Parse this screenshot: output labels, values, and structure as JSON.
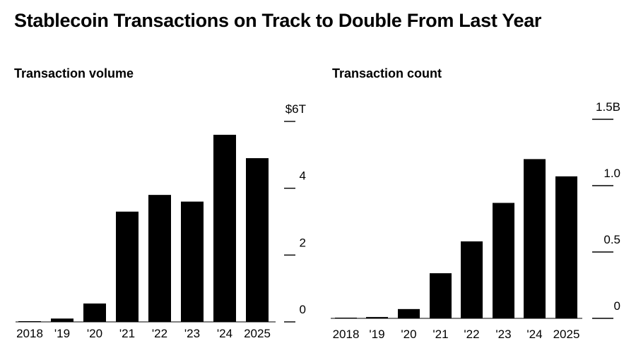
{
  "title": "Stablecoin Transactions on Track to Double From Last Year",
  "chart_data": [
    {
      "type": "bar",
      "title": "Transaction volume",
      "categories": [
        "2018",
        "'19",
        "'20",
        "'21",
        "'22",
        "'23",
        "'24",
        "2025"
      ],
      "values": [
        0.02,
        0.1,
        0.55,
        3.3,
        3.8,
        3.6,
        5.6,
        4.9
      ],
      "ylim": [
        0,
        6
      ],
      "yticks": [
        0,
        2,
        4,
        6
      ],
      "ytick_labels": [
        "0",
        "2",
        "4",
        "$6T"
      ],
      "bar_color": "#000000",
      "grid": false,
      "xlabel": "",
      "ylabel": ""
    },
    {
      "type": "bar",
      "title": "Transaction count",
      "categories": [
        "2018",
        "'19",
        "'20",
        "'21",
        "'22",
        "'23",
        "'24",
        "2025"
      ],
      "values": [
        0.003,
        0.01,
        0.07,
        0.34,
        0.58,
        0.87,
        1.2,
        1.07
      ],
      "ylim": [
        0,
        1.5
      ],
      "yticks": [
        0,
        0.5,
        1.0,
        1.5
      ],
      "ytick_labels": [
        "0",
        "0.5",
        "1.0",
        "1.5B"
      ],
      "bar_color": "#000000",
      "grid": false,
      "xlabel": "",
      "ylabel": ""
    }
  ]
}
